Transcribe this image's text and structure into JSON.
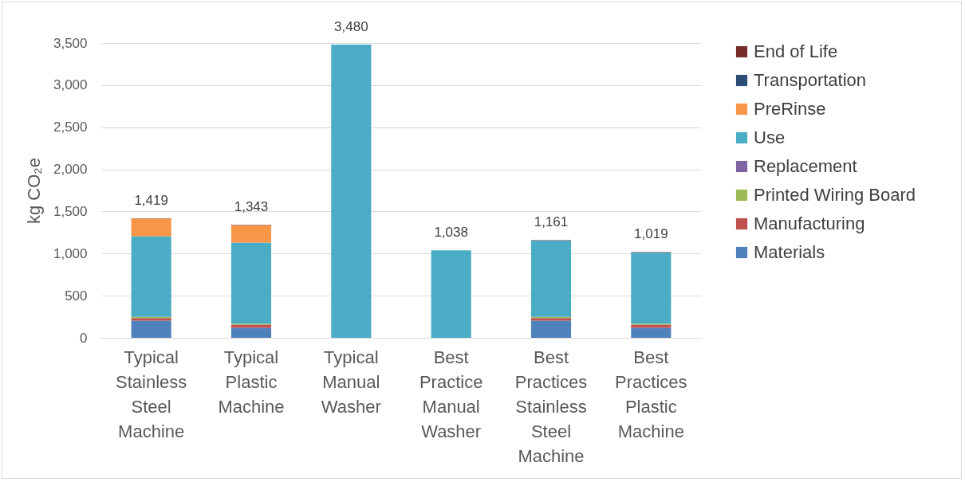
{
  "chart_data": {
    "type": "bar",
    "stacked": true,
    "ylabel": "kg CO₂e",
    "categories": [
      "Typical Stainless Steel Machine",
      "Typical Plastic Machine",
      "Typical Manual Washer",
      "Best Practice Manual Washer",
      "Best Practices Stainless Steel Machine",
      "Best Practices Plastic Machine"
    ],
    "series": [
      {
        "name": "Materials",
        "color": "#4f81bd",
        "values": [
          203,
          118,
          0,
          0,
          203,
          118
        ]
      },
      {
        "name": "Manufacturing",
        "color": "#c0504d",
        "values": [
          30,
          37,
          0,
          0,
          30,
          37
        ]
      },
      {
        "name": "Printed Wiring Board",
        "color": "#9bbb59",
        "values": [
          15,
          12,
          0,
          0,
          15,
          12
        ]
      },
      {
        "name": "Replacement",
        "color": "#8064a2",
        "values": [
          0,
          0,
          0,
          0,
          0,
          0
        ]
      },
      {
        "name": "Use",
        "color": "#4bacc6",
        "values": [
          958,
          963,
          3480,
          1038,
          906,
          845
        ]
      },
      {
        "name": "PreRinse",
        "color": "#f79646",
        "values": [
          206,
          206,
          0,
          0,
          0,
          0
        ]
      },
      {
        "name": "Transportation",
        "color": "#2c4d75",
        "values": [
          null,
          null,
          null,
          null,
          null,
          null
        ]
      },
      {
        "name": "End of Life",
        "color": "#772c2a",
        "values": [
          5,
          5,
          0,
          0,
          5,
          5
        ]
      }
    ],
    "totals": [
      "1,419",
      "1,343",
      "3,480",
      "1,038",
      "1,161",
      "1,019"
    ],
    "ylim": [
      0,
      3500
    ],
    "yticks": [
      0,
      {
        "value": 500,
        "label": "500"
      },
      {
        "value": 1000,
        "label": "1,000"
      },
      {
        "value": 1500,
        "label": "1,500"
      },
      {
        "value": 2000,
        "label": "2,000"
      },
      {
        "value": 2500,
        "label": "2,500"
      },
      {
        "value": 3000,
        "label": "3,000"
      },
      {
        "value": 3500,
        "label": "3,500"
      }
    ],
    "grid": "y",
    "legend": "right"
  }
}
